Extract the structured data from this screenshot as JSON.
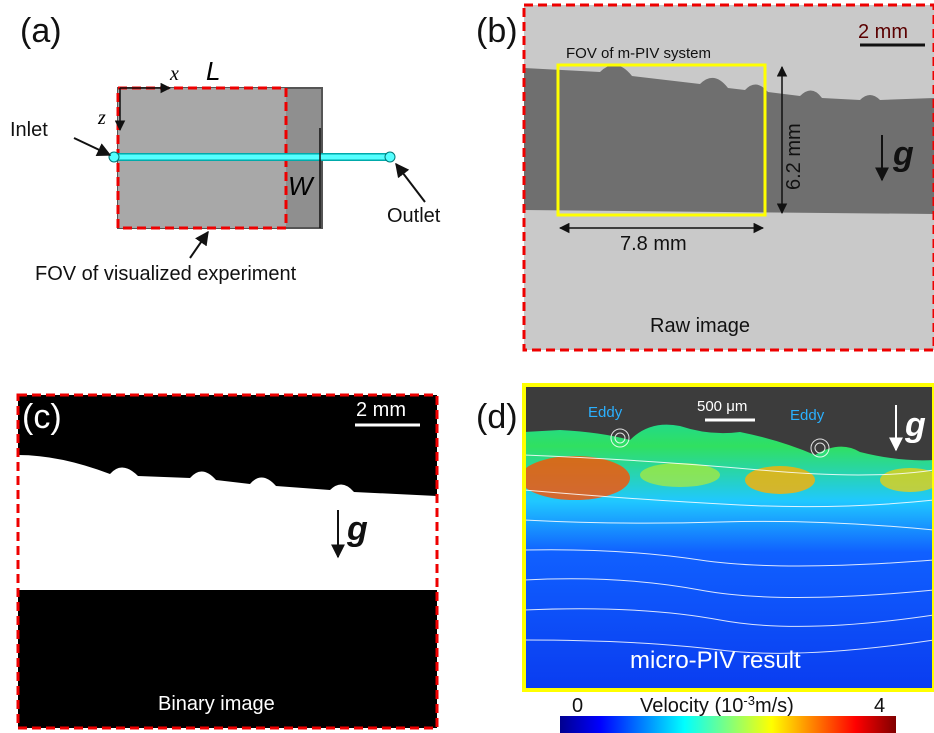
{
  "panels": {
    "a": {
      "label": "(a)",
      "x_label": "x",
      "length_label": "L",
      "z_label": "z",
      "width_label": "W",
      "inlet": "Inlet",
      "outlet": "Outlet",
      "fov": "FOV of visualized experiment"
    },
    "b": {
      "label": "(b)",
      "fov": "FOV of m-PIV system",
      "scale": "2 mm",
      "height": "6.2 mm",
      "width": "7.8 mm",
      "gravity": "g",
      "caption": "Raw image"
    },
    "c": {
      "label": "(c)",
      "scale": "2 mm",
      "gravity": "g",
      "caption": "Binary image"
    },
    "d": {
      "label": "(d)",
      "eddies": [
        "Eddy",
        "Eddy"
      ],
      "scale": "500 μm",
      "gravity": "g",
      "caption": "micro-PIV result",
      "colorbar": {
        "min": 0,
        "title": "Velocity (10",
        "exponent": "-3",
        "unit": "m/s)",
        "max": 4
      }
    }
  }
}
